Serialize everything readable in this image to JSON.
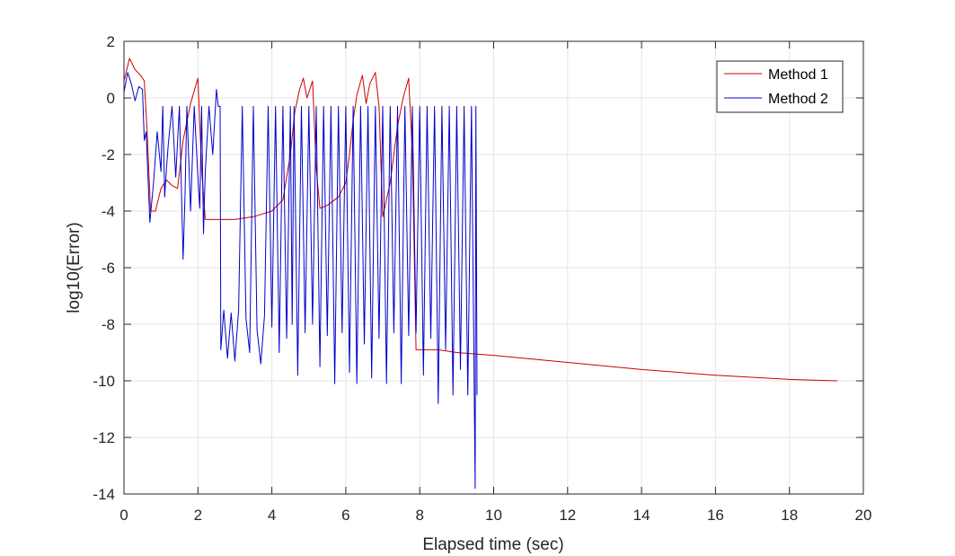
{
  "chart_data": {
    "type": "line",
    "xlabel": "Elapsed time (sec)",
    "ylabel": "log10(Error)",
    "xlim": [
      0,
      20
    ],
    "ylim": [
      -14,
      2
    ],
    "xticks": [
      0,
      2,
      4,
      6,
      8,
      10,
      12,
      14,
      16,
      18,
      20
    ],
    "yticks": [
      2,
      0,
      -2,
      -4,
      -6,
      -8,
      -10,
      -12,
      -14
    ],
    "grid": true,
    "legend_position": "top-right",
    "series": [
      {
        "name": "Method 1",
        "color": "#cc0000",
        "x": [
          0,
          0.15,
          0.3,
          0.45,
          0.55,
          0.62,
          0.72,
          0.85,
          1.0,
          1.15,
          1.3,
          1.45,
          1.6,
          1.8,
          2.0,
          2.1,
          2.2,
          2.5,
          3.0,
          3.5,
          4.0,
          4.3,
          4.5,
          4.62,
          4.75,
          4.85,
          4.95,
          5.1,
          5.2,
          5.3,
          5.5,
          5.8,
          6.0,
          6.1,
          6.2,
          6.3,
          6.45,
          6.55,
          6.65,
          6.8,
          6.9,
          7.0,
          7.2,
          7.4,
          7.55,
          7.7,
          7.8,
          7.9,
          8.5,
          9.0,
          10,
          12,
          14,
          16,
          18,
          19.3
        ],
        "y": [
          0.6,
          1.4,
          1.0,
          0.8,
          0.6,
          -1.0,
          -4.0,
          -4.0,
          -3.2,
          -2.9,
          -3.1,
          -3.2,
          -1.5,
          -0.2,
          0.7,
          -2.5,
          -4.3,
          -4.3,
          -4.3,
          -4.2,
          -4.0,
          -3.6,
          -2.0,
          -0.5,
          0.3,
          0.7,
          0.0,
          0.6,
          -2.5,
          -3.9,
          -3.8,
          -3.5,
          -3.0,
          -2.0,
          -0.8,
          0.1,
          0.8,
          -0.2,
          0.5,
          0.9,
          -0.3,
          -4.2,
          -3.0,
          -1.0,
          0.0,
          0.7,
          -2.0,
          -8.9,
          -8.9,
          -9.0,
          -9.1,
          -9.35,
          -9.6,
          -9.8,
          -9.95,
          -10.0
        ]
      },
      {
        "name": "Method 2",
        "color": "#0000cc",
        "x": [
          0,
          0.1,
          0.2,
          0.3,
          0.4,
          0.5,
          0.55,
          0.6,
          0.7,
          0.8,
          0.9,
          1.0,
          1.05,
          1.1,
          1.15,
          1.2,
          1.3,
          1.4,
          1.5,
          1.6,
          1.65,
          1.7,
          1.8,
          1.9,
          2.0,
          2.05,
          2.1,
          2.15,
          2.2,
          2.3,
          2.4,
          2.5,
          2.55,
          2.6,
          2.62,
          2.7,
          2.8,
          2.9,
          3.0,
          3.1,
          3.2,
          3.3,
          3.4,
          3.5,
          3.6,
          3.7,
          3.8,
          3.9,
          4.0,
          4.1,
          4.2,
          4.3,
          4.4,
          4.5,
          4.55,
          4.6,
          4.7,
          4.8,
          4.9,
          5.0,
          5.1,
          5.2,
          5.3,
          5.4,
          5.5,
          5.6,
          5.7,
          5.8,
          5.9,
          6.0,
          6.1,
          6.2,
          6.3,
          6.4,
          6.5,
          6.6,
          6.7,
          6.8,
          6.9,
          7.0,
          7.1,
          7.2,
          7.3,
          7.4,
          7.5,
          7.6,
          7.7,
          7.8,
          7.9,
          8.0,
          8.1,
          8.2,
          8.3,
          8.4,
          8.5,
          8.6,
          8.7,
          8.8,
          8.9,
          9.0,
          9.1,
          9.2,
          9.3,
          9.4,
          9.5,
          9.52,
          9.55
        ],
        "y": [
          0.2,
          0.9,
          0.5,
          -0.1,
          0.4,
          0.3,
          -1.5,
          -1.2,
          -4.4,
          -3.0,
          -1.2,
          -2.6,
          -0.3,
          -3.5,
          -2.5,
          -1.6,
          -0.3,
          -2.8,
          -0.3,
          -5.7,
          -3.5,
          -0.3,
          -4.0,
          -0.3,
          -2.8,
          -3.9,
          -0.3,
          -4.8,
          -2.6,
          -0.3,
          -2.0,
          0.3,
          -0.3,
          -0.3,
          -8.9,
          -7.5,
          -9.2,
          -7.6,
          -9.3,
          -7.5,
          -0.3,
          -7.8,
          -9.0,
          -0.3,
          -8.2,
          -9.4,
          -7.7,
          -0.3,
          -8.1,
          -0.3,
          -9.0,
          -0.3,
          -8.5,
          -0.3,
          -8.0,
          -0.3,
          -9.8,
          -0.3,
          -8.3,
          -0.3,
          -8.0,
          -0.3,
          -9.5,
          -0.3,
          -8.4,
          -0.3,
          -10.1,
          -0.3,
          -8.3,
          -0.3,
          -9.7,
          -0.3,
          -10.1,
          -0.3,
          -8.7,
          -0.3,
          -9.9,
          -0.3,
          -8.5,
          -0.3,
          -10.1,
          -0.3,
          -8.3,
          -0.3,
          -10.1,
          -0.3,
          -8.4,
          -0.3,
          -8.3,
          -0.3,
          -9.8,
          -0.3,
          -8.5,
          -0.3,
          -10.8,
          -0.3,
          -8.9,
          -0.3,
          -10.5,
          -0.3,
          -9.6,
          -0.3,
          -10.5,
          -0.3,
          -13.8,
          -0.3,
          -10.5
        ]
      }
    ]
  }
}
